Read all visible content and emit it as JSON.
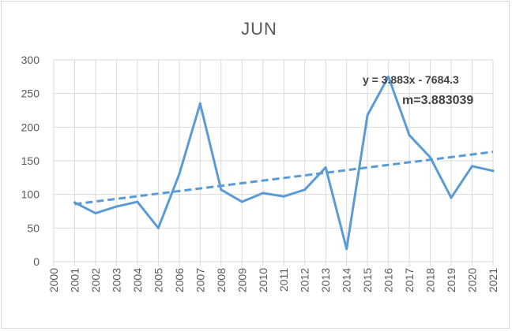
{
  "chart_data": {
    "type": "line",
    "title": "JUN",
    "xlabel": "",
    "ylabel": "",
    "x_ticks": [
      "2000",
      "2001",
      "2002",
      "2003",
      "2004",
      "2005",
      "2006",
      "2007",
      "2008",
      "2009",
      "2010",
      "2011",
      "2012",
      "2013",
      "2014",
      "2015",
      "2016",
      "2017",
      "2018",
      "2019",
      "2020",
      "2021"
    ],
    "xlim": [
      2000,
      2021
    ],
    "ylim": [
      0,
      300
    ],
    "y_ticks": [
      0,
      50,
      100,
      150,
      200,
      250,
      300
    ],
    "grid": true,
    "series": [
      {
        "x": [
          2001,
          2002,
          2003,
          2004,
          2005,
          2006,
          2007,
          2008,
          2009,
          2010,
          2011,
          2012,
          2013,
          2014,
          2015,
          2016,
          2017,
          2018,
          2019,
          2020,
          2021
        ],
        "values": [
          88,
          72,
          82,
          89,
          50,
          130,
          235,
          107,
          89,
          102,
          97,
          107,
          140,
          19,
          218,
          275,
          188,
          155,
          95,
          142,
          135
        ],
        "color": "#5b9bd5"
      }
    ],
    "trendline": {
      "type": "linear",
      "style": "dashed",
      "color": "#5b9bd5",
      "slope": 3.883,
      "intercept": -7684.3,
      "equation_label": "y = 3.883x - 7684.3",
      "slope_label": "m=3.883039"
    }
  },
  "colors": {
    "series": "#5b9bd5",
    "grid": "#d9d9d9",
    "text": "#595959"
  }
}
